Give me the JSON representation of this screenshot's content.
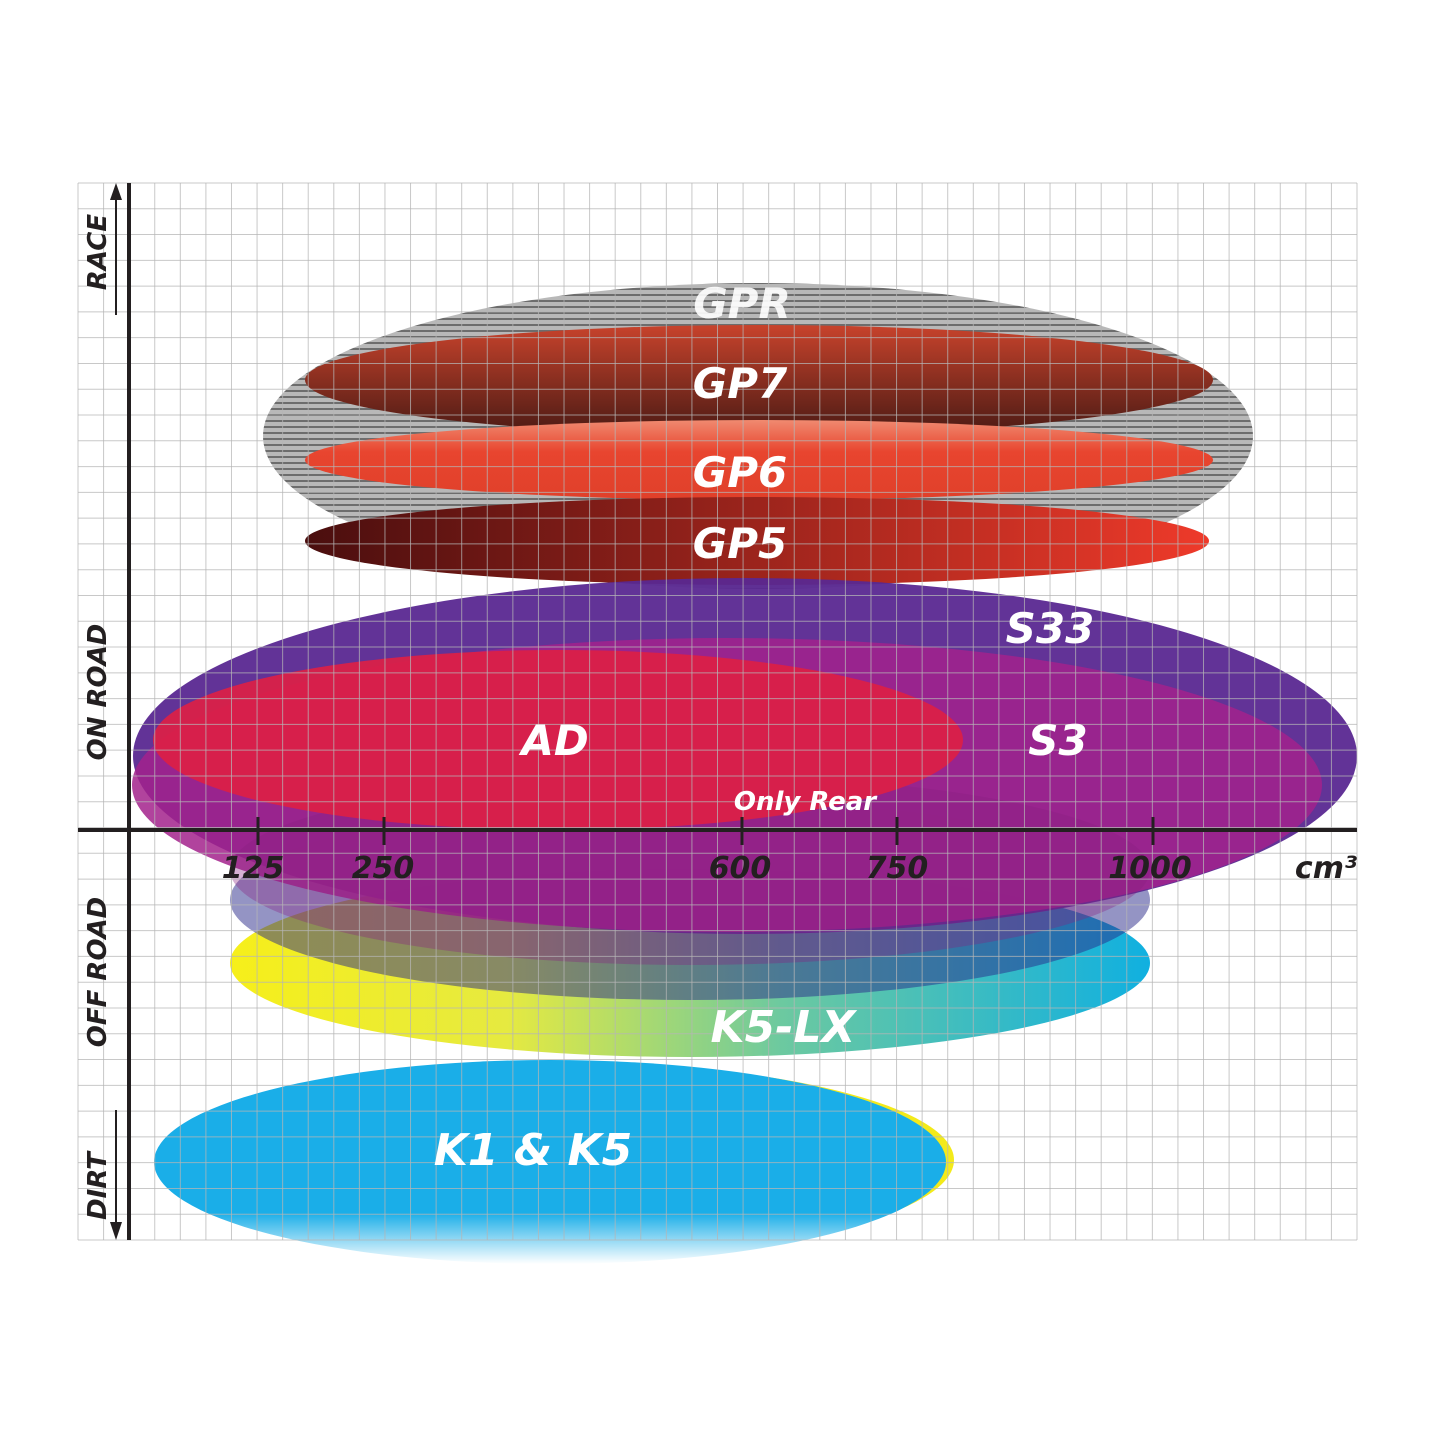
{
  "axis": {
    "x_unit": "cm³",
    "x_ticks": [
      "125",
      "250",
      "600",
      "750",
      "1000"
    ],
    "y_labels": {
      "race": "RACE",
      "on_road": "ON ROAD",
      "off_road": "OFF ROAD",
      "dirt": "DIRT"
    }
  },
  "products": [
    {
      "name": "GPR",
      "color": "#9a9a9a"
    },
    {
      "name": "GP7",
      "color": "#7a2a1e"
    },
    {
      "name": "GP6",
      "color": "#e8452f"
    },
    {
      "name": "GP5",
      "color": "#b0241c"
    },
    {
      "name": "S33",
      "color": "#5a2891"
    },
    {
      "name": "S3",
      "color": "#a3228c"
    },
    {
      "name": "AD",
      "color": "#dc1f45"
    },
    {
      "name": "Only Rear",
      "color": "#a3228c"
    },
    {
      "name": "K5-LX",
      "color": "#2ab0c8"
    },
    {
      "name": "K1 & K5",
      "color": "#1aaee8"
    }
  ]
}
